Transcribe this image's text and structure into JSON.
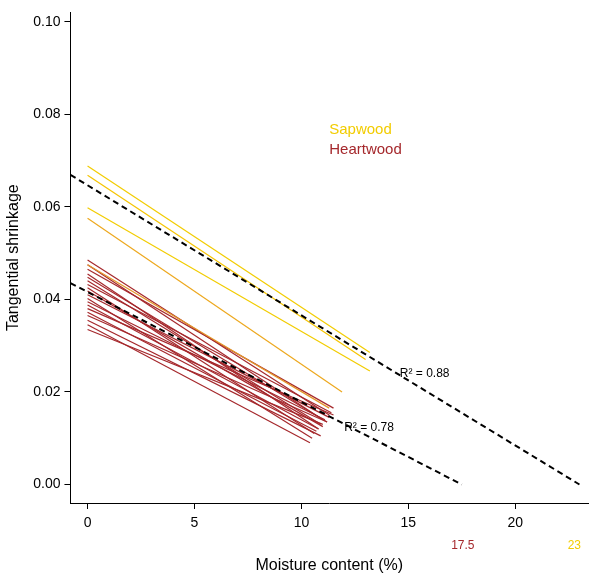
{
  "chart_data": {
    "type": "line",
    "x_label": "Moisture content (%)",
    "y_label": "Tangential shrinkage",
    "xlim": [
      -0.8,
      23.4
    ],
    "ylim": [
      -0.004,
      0.102
    ],
    "xticks": [
      0,
      5,
      10,
      15,
      20
    ],
    "yticks": [
      {
        "value": 0,
        "label": "0.00"
      },
      {
        "value": 0.02,
        "label": "0.02"
      },
      {
        "value": 0.04,
        "label": "0.04"
      },
      {
        "value": 0.06,
        "label": "0.06"
      },
      {
        "value": 0.08,
        "label": "0.08"
      },
      {
        "value": 0.1,
        "label": "0.10"
      }
    ],
    "grid": false,
    "groups": [
      {
        "name": "Sapwood",
        "color": "#F2CC00",
        "lines": [
          {
            "x": [
              0,
              13.2
            ],
            "values": [
              0.0688,
              0.0285
            ]
          },
          {
            "x": [
              0,
              13.0
            ],
            "values": [
              0.0668,
              0.027
            ],
            "color": "#F5C400"
          },
          {
            "x": [
              0,
              13.2
            ],
            "values": [
              0.0598,
              0.0245
            ]
          },
          {
            "x": [
              0,
              11.9
            ],
            "values": [
              0.0575,
              0.02
            ],
            "color": "#EDA81E"
          },
          {
            "x": [
              0,
              11.3
            ],
            "values": [
              0.0475,
              0.0165
            ],
            "color": "#E3962A"
          }
        ]
      },
      {
        "name": "Heartwood",
        "color": "#A5282C",
        "lines": [
          {
            "x": [
              0,
              11.3
            ],
            "values": [
              0.0485,
              0.015
            ]
          },
          {
            "x": [
              0,
              11.0
            ],
            "values": [
              0.0475,
              0.014
            ]
          },
          {
            "x": [
              0,
              11.5
            ],
            "values": [
              0.0465,
              0.0165
            ]
          },
          {
            "x": [
              0,
              10.8
            ],
            "values": [
              0.0455,
              0.012
            ]
          },
          {
            "x": [
              0,
              11.2
            ],
            "values": [
              0.0448,
              0.0135
            ]
          },
          {
            "x": [
              0,
              10.9
            ],
            "values": [
              0.044,
              0.013
            ]
          },
          {
            "x": [
              0,
              11.4
            ],
            "values": [
              0.0432,
              0.0155
            ]
          },
          {
            "x": [
              0,
              10.6
            ],
            "values": [
              0.0425,
              0.011
            ]
          },
          {
            "x": [
              0,
              11.0
            ],
            "values": [
              0.0418,
              0.0125
            ]
          },
          {
            "x": [
              0,
              11.3
            ],
            "values": [
              0.041,
              0.0145
            ]
          },
          {
            "x": [
              0,
              10.5
            ],
            "values": [
              0.0402,
              0.01
            ]
          },
          {
            "x": [
              0,
              11.1
            ],
            "values": [
              0.0395,
              0.014
            ]
          },
          {
            "x": [
              0,
              10.8
            ],
            "values": [
              0.0388,
              0.012
            ]
          },
          {
            "x": [
              0,
              11.5
            ],
            "values": [
              0.038,
              0.015
            ]
          },
          {
            "x": [
              0,
              10.7
            ],
            "values": [
              0.0372,
              0.0115
            ]
          },
          {
            "x": [
              0,
              11.2
            ],
            "values": [
              0.0365,
              0.0135
            ]
          },
          {
            "x": [
              0,
              10.9
            ],
            "values": [
              0.0355,
              0.0105
            ]
          },
          {
            "x": [
              0,
              10.4
            ],
            "values": [
              0.0345,
              0.009
            ]
          },
          {
            "x": [
              0,
              11.0
            ],
            "values": [
              0.0335,
              0.013
            ]
          }
        ]
      }
    ],
    "fits": [
      {
        "color": "#000000",
        "line_style": "dashed",
        "x": [
          -0.8,
          23
        ],
        "values": [
          0.0669,
          0
        ]
      },
      {
        "color": "#000000",
        "line_style": "dashed",
        "x": [
          -0.8,
          17.5
        ],
        "values": [
          0.0435,
          0
        ]
      }
    ],
    "annotations": [
      {
        "text": "R² = 0.88",
        "x": 14.6,
        "y": 0.024,
        "color": "#000000"
      },
      {
        "text": "R² = 0.78",
        "x": 12.0,
        "y": 0.0123,
        "color": "#000000"
      },
      {
        "text": "17.5",
        "x": 17.0,
        "y": -0.0132,
        "color": "#A5282C"
      },
      {
        "text": "23",
        "x": 22.45,
        "y": -0.0132,
        "color": "#F2CC00"
      }
    ]
  }
}
